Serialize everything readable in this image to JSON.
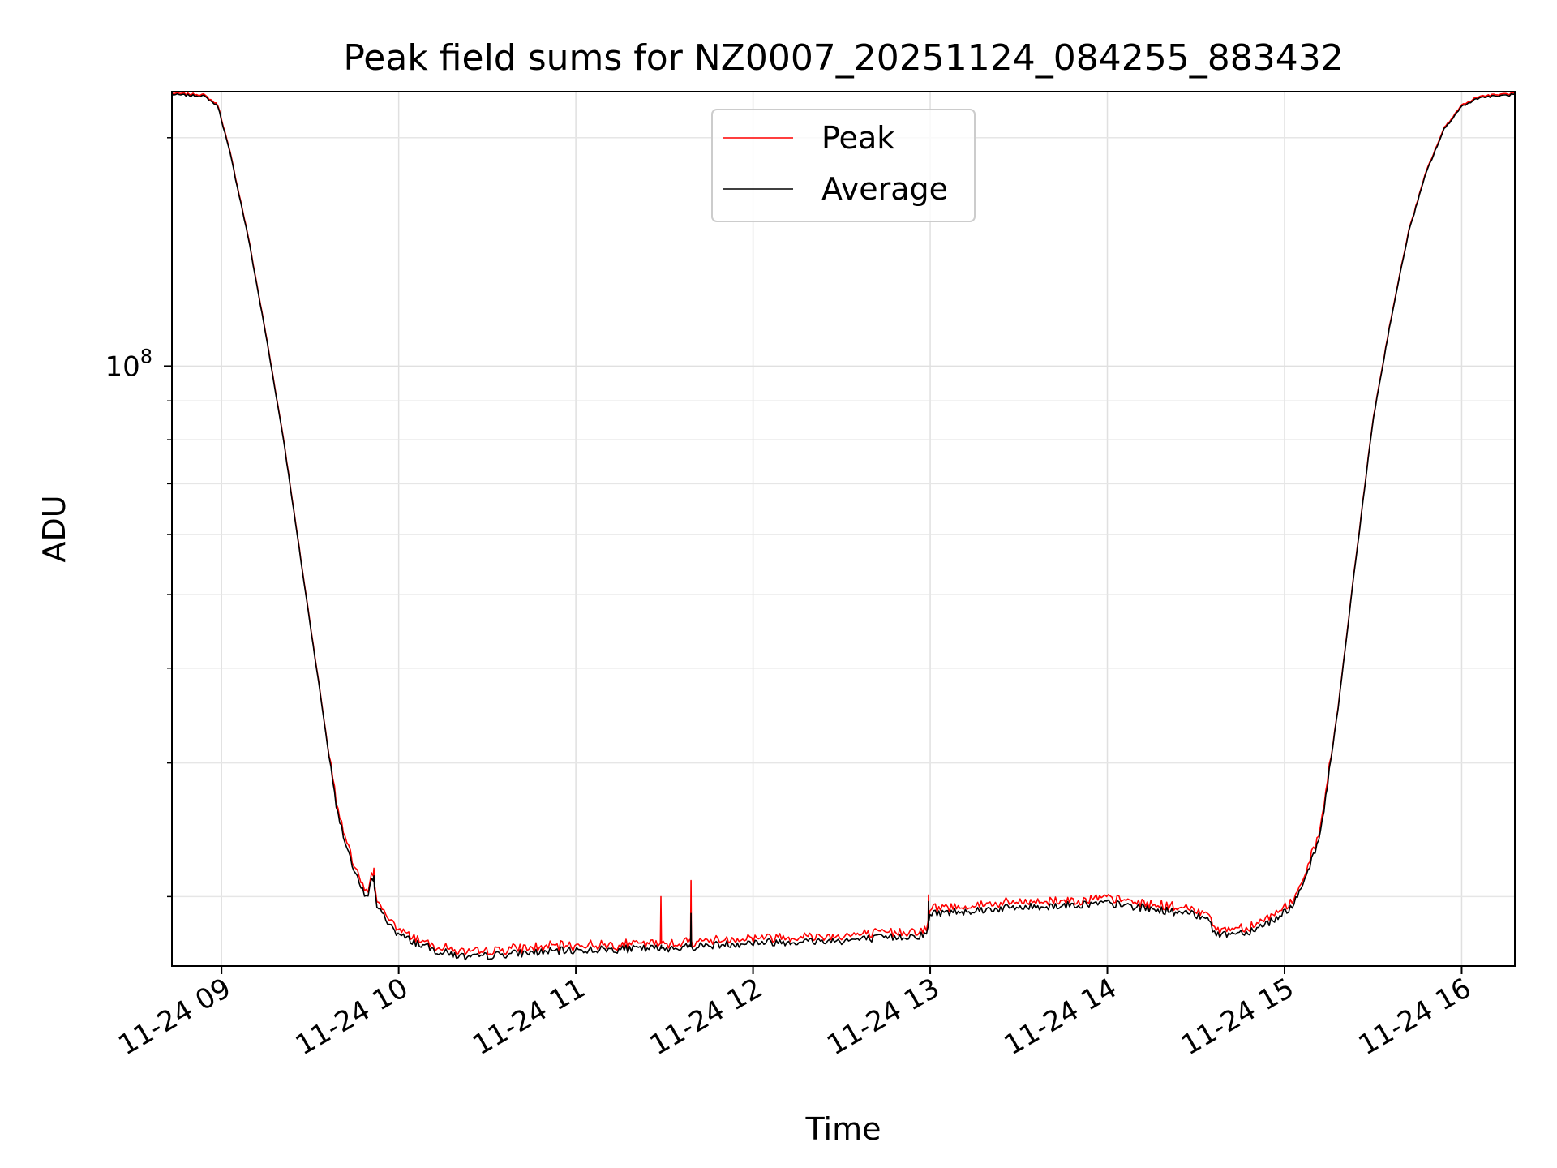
{
  "chart_data": {
    "type": "line",
    "title": "Peak field sums for NZ0007_20251124_084255_883432",
    "xlabel": "Time",
    "ylabel": "ADU",
    "yscale": "log",
    "xlim": [
      8.72,
      16.3
    ],
    "ylim": [
      16200000,
      230000000
    ],
    "grid": true,
    "legend_position": "upper center",
    "x_ticks": [
      {
        "value": 9,
        "label": "11-24 09"
      },
      {
        "value": 10,
        "label": "11-24 10"
      },
      {
        "value": 11,
        "label": "11-24 11"
      },
      {
        "value": 12,
        "label": "11-24 12"
      },
      {
        "value": 13,
        "label": "11-24 13"
      },
      {
        "value": 14,
        "label": "11-24 14"
      },
      {
        "value": 15,
        "label": "11-24 15"
      },
      {
        "value": 16,
        "label": "11-24 16"
      }
    ],
    "y_major_ticks": [
      {
        "value": 100000000,
        "base": "10",
        "exp": "8"
      }
    ],
    "y_minor_ticks": [
      20000000,
      30000000,
      40000000,
      50000000,
      60000000,
      70000000,
      80000000,
      90000000,
      200000000
    ],
    "series": [
      {
        "name": "Peak",
        "color": "#ff0000"
      },
      {
        "name": "Average",
        "color": "#000000"
      }
    ],
    "average_keypoints": [
      [
        8.72,
        228000000
      ],
      [
        8.9,
        227000000
      ],
      [
        8.98,
        220000000
      ],
      [
        9.05,
        190000000
      ],
      [
        9.15,
        148000000
      ],
      [
        9.25,
        110000000
      ],
      [
        9.35,
        80000000
      ],
      [
        9.45,
        55000000
      ],
      [
        9.55,
        38000000
      ],
      [
        9.65,
        26000000
      ],
      [
        9.75,
        21500000
      ],
      [
        9.82,
        19800000
      ],
      [
        9.85,
        21500000
      ],
      [
        9.88,
        19300000
      ],
      [
        10.0,
        17800000
      ],
      [
        10.2,
        17000000
      ],
      [
        10.4,
        16600000
      ],
      [
        10.6,
        16800000
      ],
      [
        11.0,
        17000000
      ],
      [
        11.5,
        17100000
      ],
      [
        12.0,
        17400000
      ],
      [
        12.5,
        17500000
      ],
      [
        12.98,
        17800000
      ],
      [
        13.0,
        19000000
      ],
      [
        13.4,
        19300000
      ],
      [
        13.8,
        19500000
      ],
      [
        14.0,
        19600000
      ],
      [
        14.3,
        19200000
      ],
      [
        14.58,
        18800000
      ],
      [
        14.6,
        17800000
      ],
      [
        14.8,
        18000000
      ],
      [
        14.95,
        18700000
      ],
      [
        15.05,
        19500000
      ],
      [
        15.1,
        20500000
      ],
      [
        15.2,
        24000000
      ],
      [
        15.3,
        35000000
      ],
      [
        15.4,
        55000000
      ],
      [
        15.5,
        85000000
      ],
      [
        15.6,
        115000000
      ],
      [
        15.7,
        150000000
      ],
      [
        15.8,
        180000000
      ],
      [
        15.9,
        205000000
      ],
      [
        16.0,
        220000000
      ],
      [
        16.1,
        226000000
      ],
      [
        16.3,
        228000000
      ]
    ],
    "peak_offset_pct": 1.5,
    "noise_pct": 1.2,
    "spikes": [
      {
        "x": 9.86,
        "peak": 21800000,
        "average": 21300000
      },
      {
        "x": 11.48,
        "peak": 20000000,
        "average": 17200000
      },
      {
        "x": 11.65,
        "peak": 21000000,
        "average": 19000000
      },
      {
        "x": 12.99,
        "peak": 20100000,
        "average": 19700000
      }
    ]
  }
}
